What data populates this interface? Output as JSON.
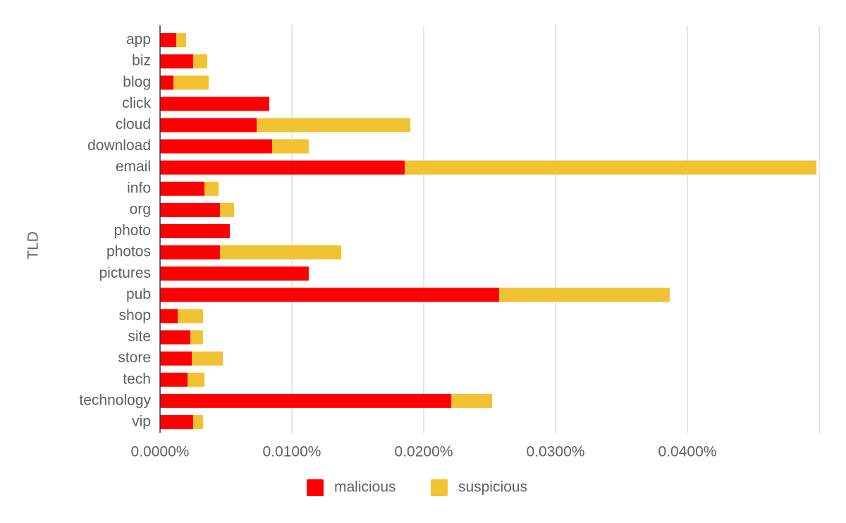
{
  "chart_data": {
    "type": "bar",
    "orientation": "horizontal",
    "stacked": true,
    "y_label": "TLD",
    "categories": [
      "app",
      "biz",
      "blog",
      "click",
      "cloud",
      "download",
      "email",
      "info",
      "org",
      "photo",
      "photos",
      "pictures",
      "pub",
      "shop",
      "site",
      "store",
      "tech",
      "technology",
      "vip"
    ],
    "series": [
      {
        "name": "malicious",
        "color": "#ff0000",
        "values": [
          0.00123,
          0.00251,
          0.00102,
          0.00829,
          0.00733,
          0.0085,
          0.01856,
          0.00337,
          0.00455,
          0.00529,
          0.00455,
          0.01128,
          0.02572,
          0.00134,
          0.0023,
          0.00241,
          0.00209,
          0.02209,
          0.00251
        ]
      },
      {
        "name": "suspicious",
        "color": "#f1c232",
        "values": [
          0.00075,
          0.00107,
          0.00267,
          0,
          0.01166,
          0.00278,
          0.03123,
          0.00107,
          0.00107,
          0,
          0.0092,
          0,
          0.01294,
          0.00193,
          0.00096,
          0.00235,
          0.00128,
          0.0031,
          0.00075
        ]
      }
    ],
    "xlim": [
      0,
      0.05
    ],
    "xticks": [
      {
        "value": 0,
        "label": "0.0000%"
      },
      {
        "value": 0.01,
        "label": "0.0100%"
      },
      {
        "value": 0.02,
        "label": "0.0200%"
      },
      {
        "value": 0.03,
        "label": "0.0300%"
      },
      {
        "value": 0.04,
        "label": "0.0400%"
      }
    ],
    "grid": true,
    "legend": "bottom"
  }
}
